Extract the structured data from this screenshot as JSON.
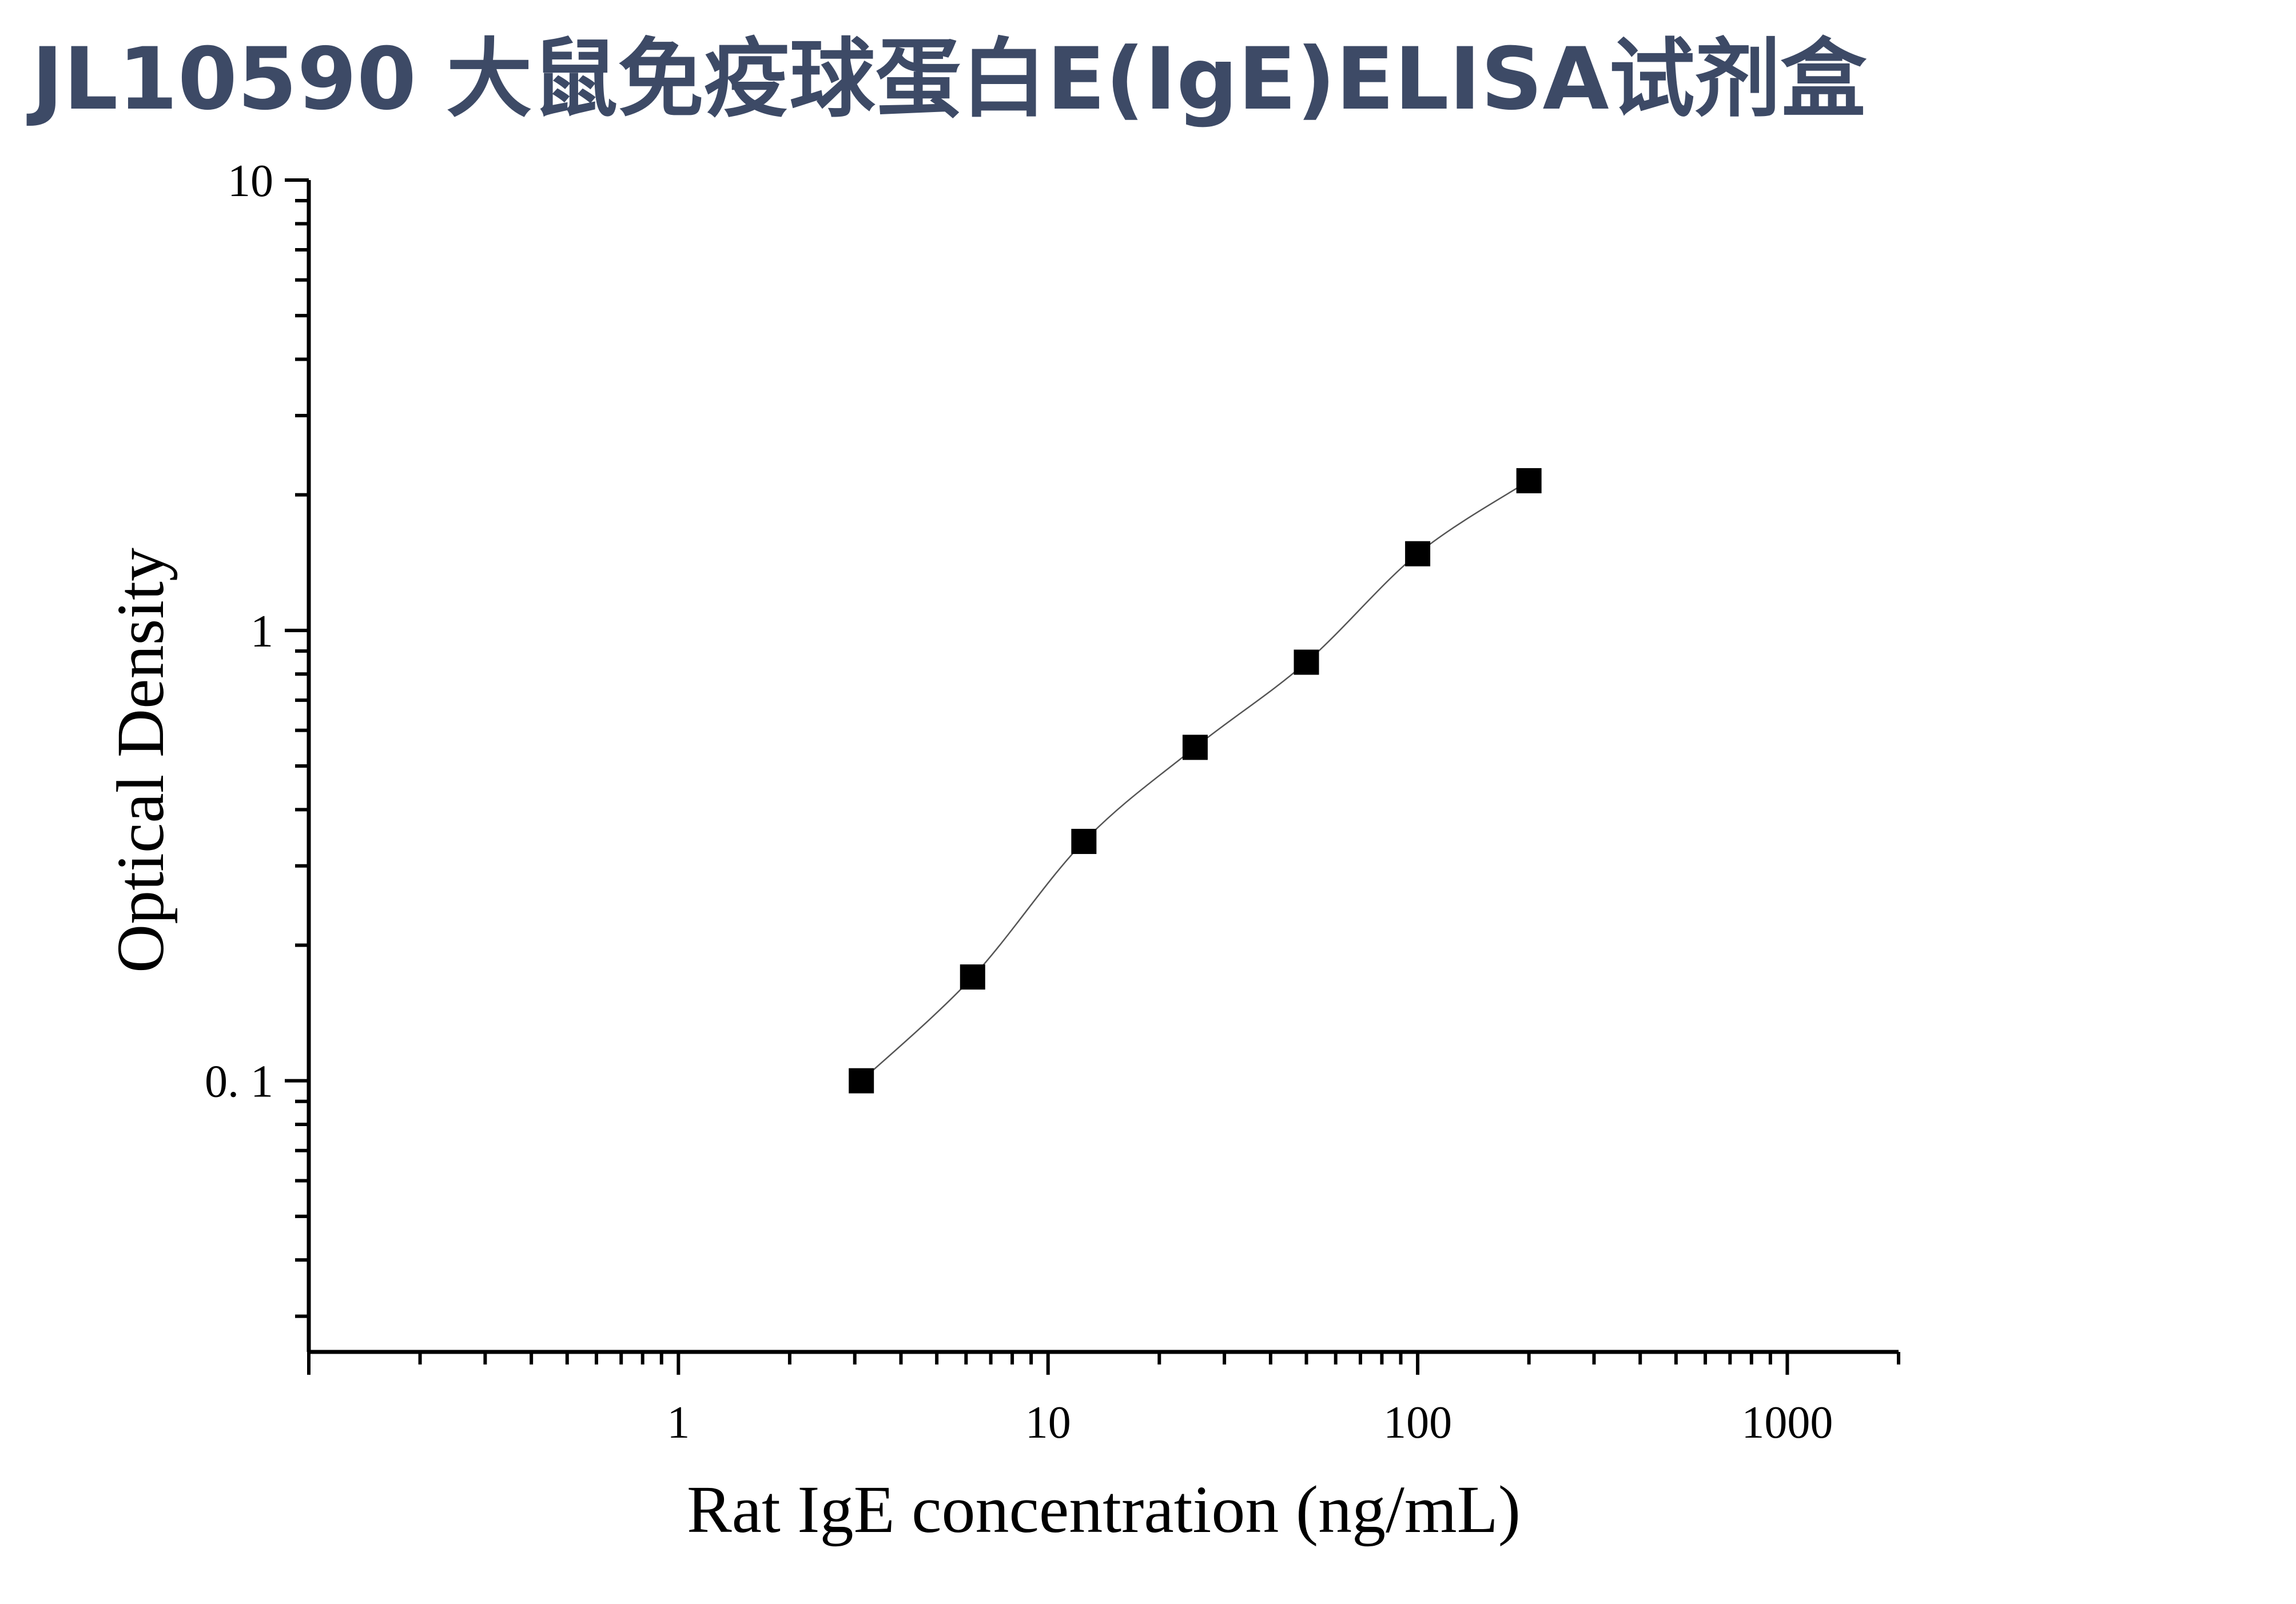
{
  "title": "JL10590 大鼠免疫球蛋白E(IgE)ELISA试剂盒",
  "title_color": "#3d4a66",
  "chart_data": {
    "type": "scatter",
    "title": "JL10590 大鼠免疫球蛋白E(IgE)ELISA试剂盒",
    "xlabel": "Rat IgE concentration (ng/mL)",
    "ylabel": "Optical Density",
    "x_scale": "log",
    "y_scale": "log",
    "xlim": [
      0.1,
      2000
    ],
    "ylim": [
      0.025,
      10
    ],
    "x_ticks": [
      1,
      10,
      100,
      1000
    ],
    "x_tick_labels": [
      "1",
      "10",
      "100",
      "1000"
    ],
    "y_ticks": [
      0.1,
      1,
      10
    ],
    "y_tick_labels": [
      "0. 1",
      "1",
      "10"
    ],
    "grid": false,
    "legend": "none",
    "marker": "square",
    "marker_color": "#000000",
    "curve_color": "#555555",
    "series": [
      {
        "x": [
          3.125,
          6.25,
          12.5,
          25,
          50,
          100,
          200
        ],
        "y": [
          0.1,
          0.17,
          0.34,
          0.55,
          0.85,
          1.48,
          2.15
        ]
      }
    ]
  }
}
